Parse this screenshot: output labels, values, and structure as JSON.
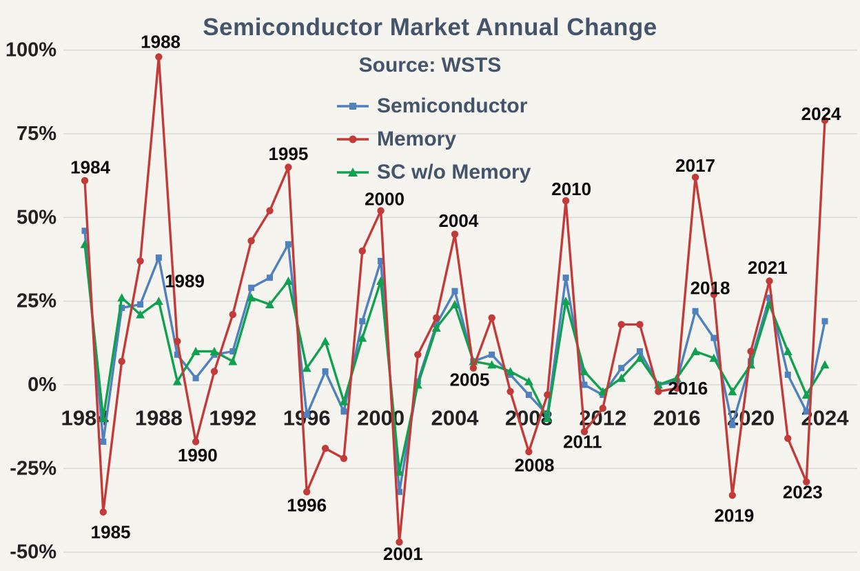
{
  "title": "Semiconductor Market Annual Change",
  "subtitle": "Source: WSTS",
  "colors": {
    "semiconductor": "#4e81bd",
    "memory": "#c23b38",
    "sc_wo_memory": "#10a150",
    "title_text": "#44546a",
    "axis_text": "#212121",
    "annotation_text": "#0b0b0b",
    "grid": "#d8d8d8",
    "background": "#f6f4ef"
  },
  "chart_data": {
    "type": "line",
    "title": "Semiconductor Market Annual Change",
    "subtitle": "Source: WSTS",
    "xlabel": "",
    "ylabel": "",
    "ylim": [
      -50,
      100
    ],
    "yticks": [
      100,
      75,
      50,
      25,
      0,
      -25,
      -50
    ],
    "ytick_labels": [
      "100%",
      "75%",
      "50%",
      "25%",
      "0%",
      "-25%",
      "-50%"
    ],
    "xticks": [
      1984,
      1988,
      1992,
      1996,
      2000,
      2004,
      2008,
      2012,
      2016,
      2020,
      2024
    ],
    "grid": true,
    "legend_position": "top-center",
    "x": [
      1984,
      1985,
      1986,
      1987,
      1988,
      1989,
      1990,
      1991,
      1992,
      1993,
      1994,
      1995,
      1996,
      1997,
      1998,
      1999,
      2000,
      2001,
      2002,
      2003,
      2004,
      2005,
      2006,
      2007,
      2008,
      2009,
      2010,
      2011,
      2012,
      2013,
      2014,
      2015,
      2016,
      2017,
      2018,
      2019,
      2020,
      2021,
      2022,
      2023,
      2024
    ],
    "series": [
      {
        "name": "Semiconductor",
        "marker": "square",
        "color_key": "semiconductor",
        "values": [
          46,
          -17,
          23,
          24,
          38,
          9,
          2,
          9,
          10,
          29,
          32,
          42,
          -9,
          4,
          -8,
          19,
          37,
          -32,
          1,
          18,
          28,
          7,
          9,
          3,
          -3,
          -9,
          32,
          0,
          -3,
          5,
          10,
          0,
          1,
          22,
          14,
          -12,
          7,
          26,
          3,
          -8,
          19
        ]
      },
      {
        "name": "Memory",
        "marker": "circle",
        "color_key": "memory",
        "values": [
          61,
          -38,
          7,
          37,
          98,
          13,
          -17,
          4,
          21,
          43,
          52,
          65,
          -32,
          -19,
          -22,
          40,
          52,
          -47,
          9,
          20,
          45,
          5,
          20,
          -2,
          -20,
          -3,
          55,
          -14,
          -7,
          18,
          18,
          -2,
          -1,
          62,
          27,
          -33,
          10,
          31,
          -16,
          -29,
          79
        ]
      },
      {
        "name": "SC w/o Memory",
        "marker": "triangle",
        "color_key": "sc_wo_memory",
        "values": [
          42,
          -10,
          26,
          21,
          25,
          1,
          10,
          10,
          7,
          26,
          24,
          31,
          5,
          13,
          -5,
          14,
          31,
          -26,
          0,
          17,
          24,
          7,
          6,
          4,
          1,
          -10,
          25,
          4,
          -2,
          2,
          8,
          0,
          2,
          10,
          8,
          -2,
          6,
          24,
          10,
          -3,
          6
        ]
      }
    ],
    "annotations": [
      {
        "label": "1984",
        "x": 1984.3,
        "y": 65
      },
      {
        "label": "1985",
        "x": 1985.4,
        "y": -44
      },
      {
        "label": "1988",
        "x": 1988.1,
        "y": 102.5
      },
      {
        "label": "1989",
        "x": 1989.4,
        "y": 31
      },
      {
        "label": "1990",
        "x": 1990.1,
        "y": -21
      },
      {
        "label": "1995",
        "x": 1995.0,
        "y": 69
      },
      {
        "label": "1996",
        "x": 1996.0,
        "y": -36
      },
      {
        "label": "2000",
        "x": 2000.2,
        "y": 55.5
      },
      {
        "label": "2001",
        "x": 2001.2,
        "y": -50.5
      },
      {
        "label": "2004",
        "x": 2004.2,
        "y": 49
      },
      {
        "label": "2005",
        "x": 2004.8,
        "y": 1.5
      },
      {
        "label": "2008",
        "x": 2008.3,
        "y": -24
      },
      {
        "label": "2010",
        "x": 2010.3,
        "y": 58.5
      },
      {
        "label": "2011",
        "x": 2010.9,
        "y": -17
      },
      {
        "label": "2016",
        "x": 2016.6,
        "y": -1
      },
      {
        "label": "2017",
        "x": 2017.0,
        "y": 65.5
      },
      {
        "label": "2018",
        "x": 2017.8,
        "y": 29
      },
      {
        "label": "2019",
        "x": 2019.1,
        "y": -39
      },
      {
        "label": "2021",
        "x": 2020.9,
        "y": 35
      },
      {
        "label": "2023",
        "x": 2022.8,
        "y": -32
      },
      {
        "label": "2024",
        "x": 2023.8,
        "y": 81
      }
    ]
  }
}
